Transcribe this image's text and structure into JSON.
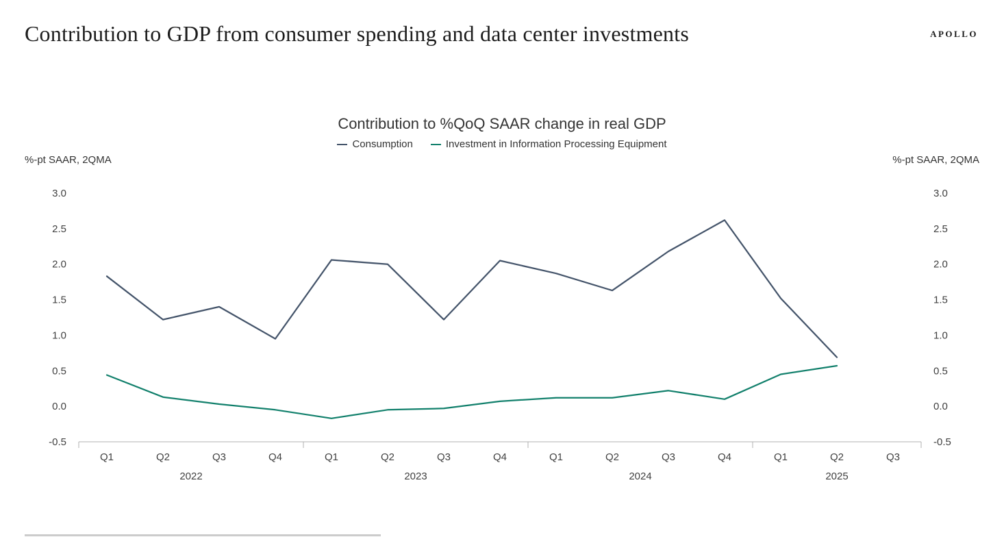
{
  "brand": "APOLLO",
  "page_title": "Contribution to GDP from consumer spending and data center investments",
  "chart_data": {
    "type": "line",
    "title": "Contribution to %QoQ SAAR change in real GDP",
    "ylabel_left": "%-pt SAAR, 2QMA",
    "ylabel_right": "%-pt SAAR, 2QMA",
    "ylim": [
      -0.5,
      3.0
    ],
    "yticks": [
      3.0,
      2.5,
      2.0,
      1.5,
      1.0,
      0.5,
      0.0,
      -0.5
    ],
    "grid": false,
    "legend_position": "top",
    "categories": [
      "Q1",
      "Q2",
      "Q3",
      "Q4",
      "Q1",
      "Q2",
      "Q3",
      "Q4",
      "Q1",
      "Q2",
      "Q3",
      "Q4",
      "Q1",
      "Q2",
      "Q3"
    ],
    "year_groups": [
      {
        "label": "2022",
        "start": 0,
        "count": 4
      },
      {
        "label": "2023",
        "start": 4,
        "count": 4
      },
      {
        "label": "2024",
        "start": 8,
        "count": 4
      },
      {
        "label": "2025",
        "start": 12,
        "count": 3
      }
    ],
    "series": [
      {
        "name": "Consumption",
        "color": "#44546A",
        "values": [
          1.83,
          1.22,
          1.4,
          0.95,
          2.06,
          2.0,
          1.22,
          2.05,
          1.87,
          1.63,
          2.18,
          2.62,
          1.52,
          0.69
        ]
      },
      {
        "name": "Investment in Information Processing Equipment",
        "color": "#12806C",
        "values": [
          0.44,
          0.13,
          0.03,
          -0.05,
          -0.17,
          -0.05,
          -0.03,
          0.07,
          0.12,
          0.12,
          0.22,
          0.1,
          0.45,
          0.57
        ]
      }
    ]
  }
}
